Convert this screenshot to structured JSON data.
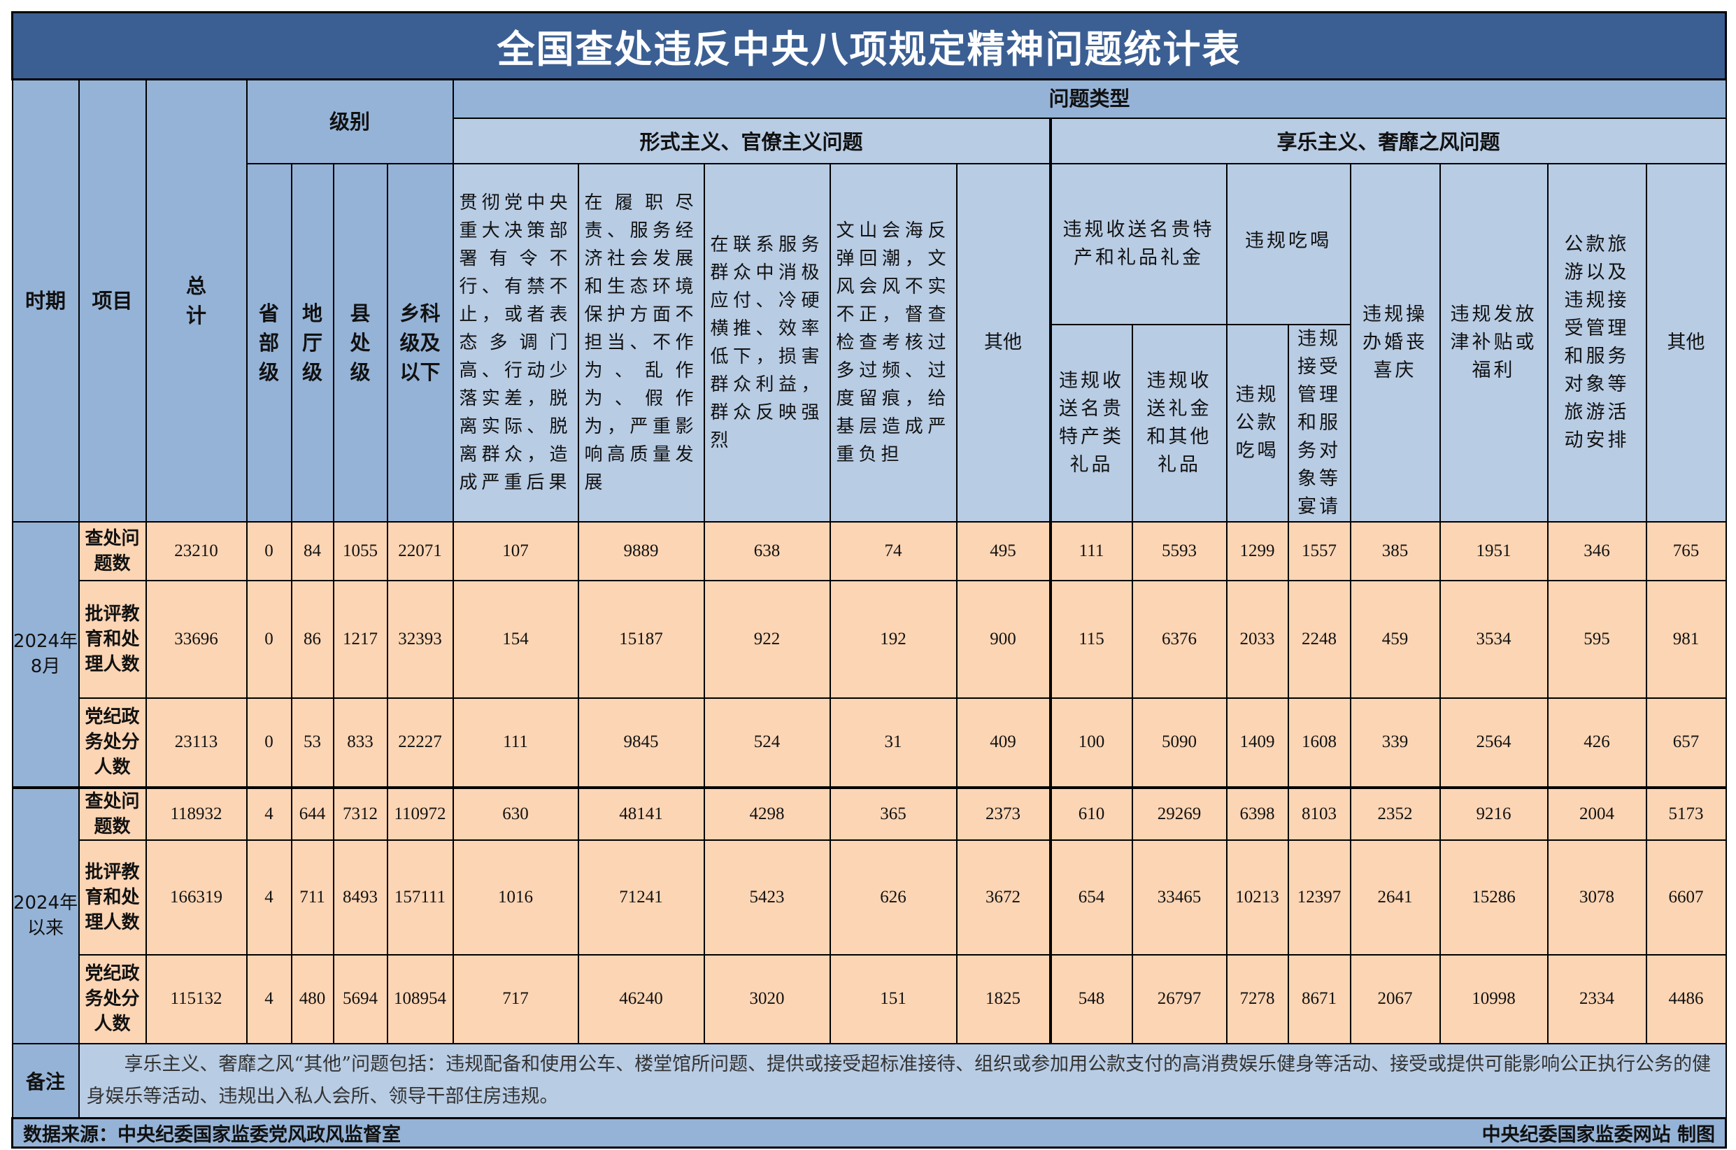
{
  "title": "全国查处违反中央八项规定精神问题统计表",
  "headers": {
    "period": "时期",
    "item": "项目",
    "total": "总计",
    "level": "级别",
    "levels": [
      "省部级",
      "地厅级",
      "县处级",
      "乡科级及以下"
    ],
    "problem_type": "问题类型",
    "formalism": "形式主义、官僚主义问题",
    "formalism_cols": [
      "贯彻党中央重大决策部署有令不行、有禁不止，或者表态多调门高、行动少落实差，脱离实际、脱离群众，造成严重后果",
      "在履职尽责、服务经济社会发展和生态环境保护方面不担当、不作为、乱作为、假作为，严重影响高质量发展",
      "在联系服务群众中消极应付、冷硬横推、效率低下，损害群众利益，群众反映强烈",
      "文山会海反弹回潮，文风会风不实不正，督查检查考核过多过频、过度留痕，给基层造成严重负担",
      "其他"
    ],
    "hedonism": "享乐主义、奢靡之风问题",
    "gifts": "违规收送名贵特产和礼品礼金",
    "gifts_cols": [
      "违规收送名贵特产类礼品",
      "违规收送礼金和其他礼品"
    ],
    "dining": "违规吃喝",
    "dining_cols": [
      "违规公款吃喝",
      "违规接受管理和服务对象等宴请"
    ],
    "weddings": "违规操办婚丧喜庆",
    "subsidies": "违规发放津补贴或福利",
    "travel": "公款旅游以及违规接受管理和服务对象等旅游活动安排",
    "other": "其他"
  },
  "groups": [
    {
      "period": "2024年8月",
      "rows": [
        {
          "item": "查处问题数",
          "values": [
            "23210",
            "0",
            "84",
            "1055",
            "22071",
            "107",
            "9889",
            "638",
            "74",
            "495",
            "111",
            "5593",
            "1299",
            "1557",
            "385",
            "1951",
            "346",
            "765"
          ]
        },
        {
          "item": "批评教育和处理人数",
          "values": [
            "33696",
            "0",
            "86",
            "1217",
            "32393",
            "154",
            "15187",
            "922",
            "192",
            "900",
            "115",
            "6376",
            "2033",
            "2248",
            "459",
            "3534",
            "595",
            "981"
          ]
        },
        {
          "item": "党纪政务处分人数",
          "values": [
            "23113",
            "0",
            "53",
            "833",
            "22227",
            "111",
            "9845",
            "524",
            "31",
            "409",
            "100",
            "5090",
            "1409",
            "1608",
            "339",
            "2564",
            "426",
            "657"
          ]
        }
      ]
    },
    {
      "period": "2024年以来",
      "rows": [
        {
          "item": "查处问题数",
          "values": [
            "118932",
            "4",
            "644",
            "7312",
            "110972",
            "630",
            "48141",
            "4298",
            "365",
            "2373",
            "610",
            "29269",
            "6398",
            "8103",
            "2352",
            "9216",
            "2004",
            "5173"
          ]
        },
        {
          "item": "批评教育和处理人数",
          "values": [
            "166319",
            "4",
            "711",
            "8493",
            "157111",
            "1016",
            "71241",
            "5423",
            "626",
            "3672",
            "654",
            "33465",
            "10213",
            "12397",
            "2641",
            "15286",
            "3078",
            "6607"
          ]
        },
        {
          "item": "党纪政务处分人数",
          "values": [
            "115132",
            "4",
            "480",
            "5694",
            "108954",
            "717",
            "46240",
            "3020",
            "151",
            "1825",
            "548",
            "26797",
            "7278",
            "8671",
            "2067",
            "10998",
            "2334",
            "4486"
          ]
        }
      ]
    }
  ],
  "note_label": "备注",
  "note": "享乐主义、奢靡之风“其他”问题包括：违规配备和使用公车、楼堂馆所问题、提供或接受超标准接待、组织或参加用公款支付的高消费娱乐健身等活动、接受或提供可能影响公正执行公务的健身娱乐等活动、违规出入私人会所、领导干部住房违规。",
  "source": "数据来源：中央纪委国家监委党风政风监督室",
  "credit": "中央纪委国家监委网站 制图",
  "colors": {
    "title_bg": "#3b5f93",
    "header_bg": "#b8cce4",
    "side_bg": "#95b3d7",
    "data_bg": "#fcd5b4"
  }
}
